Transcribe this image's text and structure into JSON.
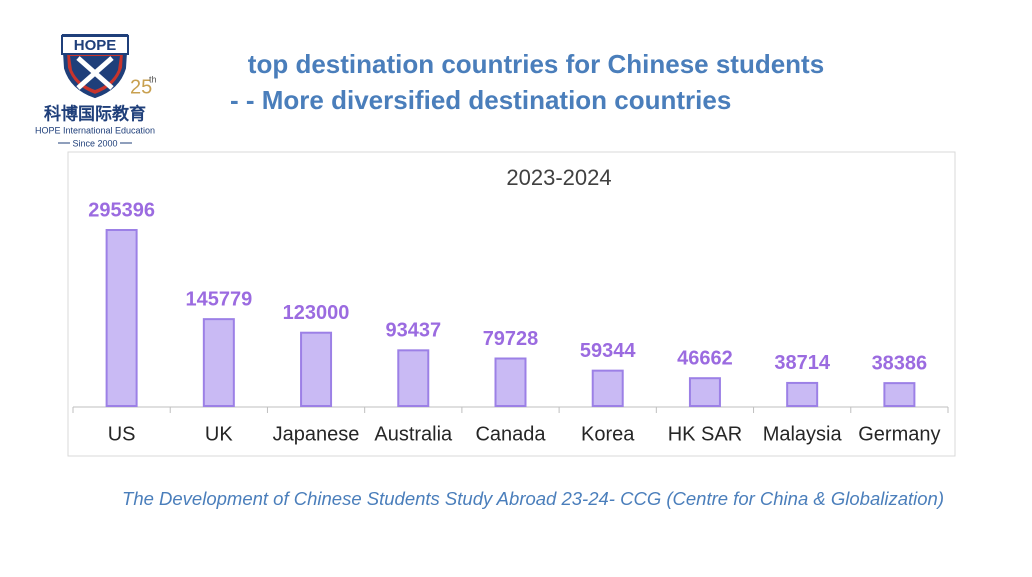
{
  "logo": {
    "badge": "HOPE",
    "anniversary": "25",
    "anniversary_suffix": "th",
    "chinese_name": "科博国际教育",
    "english_name": "HOPE International Education",
    "since": "Since 2000"
  },
  "header": {
    "title": "top destination countries for Chinese students",
    "subtitle": "- - More diversified destination countries"
  },
  "chart_data": {
    "type": "bar",
    "title": "2023-2024",
    "categories": [
      "US",
      "UK",
      "Japanese",
      "Australia",
      "Canada",
      "Korea",
      "HK SAR",
      "Malaysia",
      "Germany"
    ],
    "values": [
      295396,
      145779,
      123000,
      93437,
      79728,
      59344,
      46662,
      38714,
      38386
    ],
    "color": "#c9baf4",
    "label_color": "#9b6be0"
  },
  "source": "The Development of Chinese Students Study Abroad 23-24- CCG (Centre for China & Globalization)"
}
